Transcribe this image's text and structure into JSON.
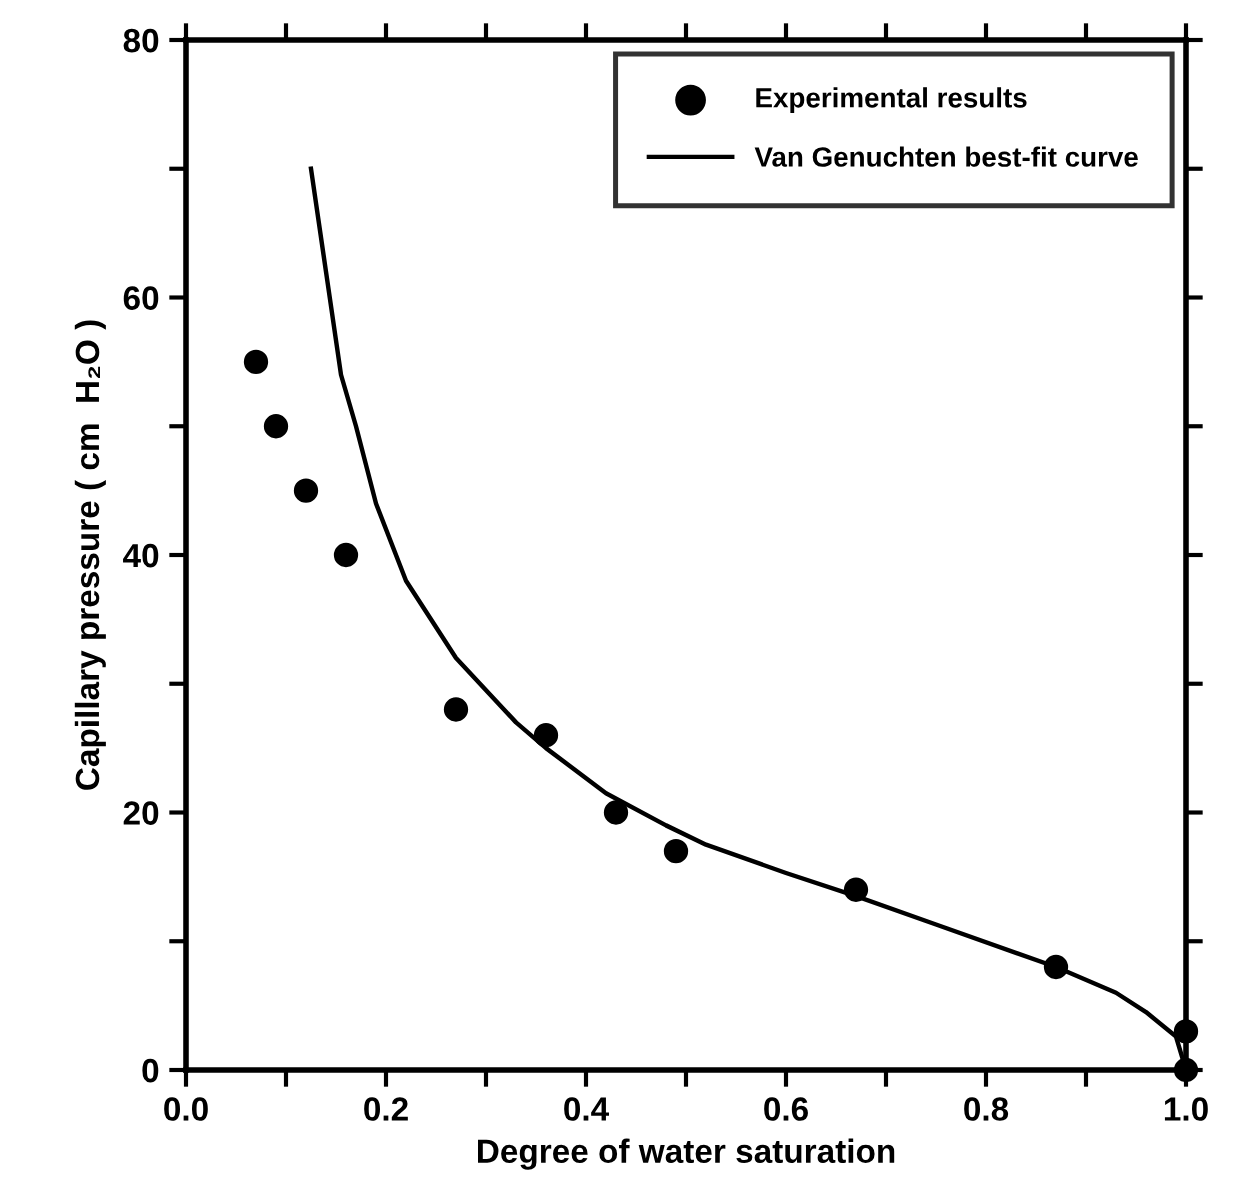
{
  "chart_data": {
    "type": "scatter",
    "xlabel": "Degree of water saturation",
    "ylabel": "Capillary pressure ( cm  H₂O )",
    "xlim": [
      0,
      1.0
    ],
    "xticks": [
      {
        "value": 0,
        "label": "0.0"
      },
      {
        "value": 0.1,
        "label": null
      },
      0.2,
      {
        "value": 0.3,
        "label": null
      },
      0.4,
      {
        "value": 0.5,
        "label": null
      },
      0.6,
      {
        "value": 0.7,
        "label": null
      },
      0.8,
      {
        "value": 0.9,
        "label": null
      },
      {
        "value": 1.0,
        "label": "1.0"
      }
    ],
    "ylim": [
      0,
      80
    ],
    "yticks": [
      0,
      {
        "value": 10,
        "label": null
      },
      20,
      {
        "value": 30,
        "label": null
      },
      40,
      {
        "value": 50,
        "label": null
      },
      60,
      {
        "value": 70,
        "label": null
      },
      80
    ],
    "tick_labels": "xy",
    "grid": false,
    "legend": "top right",
    "series": [
      {
        "name": "Experimental results",
        "marker": "circle",
        "color": "#000000",
        "x": [
          0.07,
          0.09,
          0.12,
          0.16,
          0.27,
          0.36,
          0.43,
          0.49,
          0.67,
          0.87,
          1.0,
          1.0
        ],
        "values": [
          55,
          50,
          45,
          40,
          28,
          26,
          20,
          17,
          14,
          8,
          3,
          0
        ]
      },
      {
        "name": "Van Genuchten best-fit curve",
        "type": "line",
        "marker": "none",
        "line_style": "solid",
        "color": "#000000",
        "x": [
          0.125,
          0.14,
          0.155,
          0.17,
          0.19,
          0.22,
          0.27,
          0.33,
          0.36,
          0.42,
          0.48,
          0.52,
          0.6,
          0.67,
          0.75,
          0.87,
          0.93,
          0.96,
          0.99,
          1.0
        ],
        "values": [
          70,
          62,
          54,
          50,
          44,
          38,
          32,
          27,
          25,
          21.5,
          19,
          17.5,
          15.3,
          13.5,
          11.3,
          8,
          6,
          4.5,
          2.6,
          0
        ]
      }
    ]
  }
}
